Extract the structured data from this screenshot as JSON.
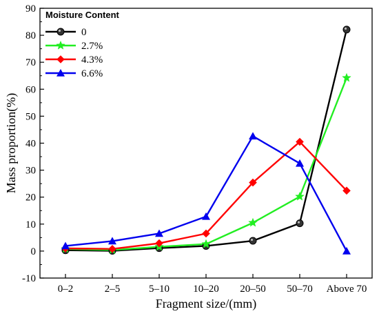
{
  "chart_data": {
    "type": "line",
    "title": "",
    "xlabel": "Fragment size/(mm)",
    "ylabel": "Mass proportion(%)",
    "ylim": [
      -10,
      90
    ],
    "yticks": [
      -10,
      0,
      10,
      20,
      30,
      40,
      50,
      60,
      70,
      80,
      90
    ],
    "categories": [
      "0–2",
      "2–5",
      "5–10",
      "10–20",
      "20–50",
      "50–70",
      "Above 70"
    ],
    "grid": false,
    "legend": {
      "title": "Moisture Content",
      "placement": "top-left"
    },
    "series": [
      {
        "name": "0",
        "marker": "circle",
        "color": "#000000",
        "values": [
          0.3,
          0.1,
          1.1,
          1.9,
          3.8,
          10.3,
          82.1
        ]
      },
      {
        "name": "2.7%",
        "marker": "star",
        "color": "#22ee22",
        "values": [
          0.8,
          0.4,
          1.6,
          2.6,
          10.5,
          20.2,
          64.2
        ]
      },
      {
        "name": "4.3%",
        "marker": "diamond",
        "color": "#ff0000",
        "values": [
          1.0,
          0.8,
          2.9,
          6.5,
          25.4,
          40.5,
          22.4
        ]
      },
      {
        "name": "6.6%",
        "marker": "triangle",
        "color": "#0000ee",
        "values": [
          1.9,
          3.7,
          6.5,
          12.8,
          42.6,
          32.5,
          0.0
        ]
      }
    ]
  }
}
